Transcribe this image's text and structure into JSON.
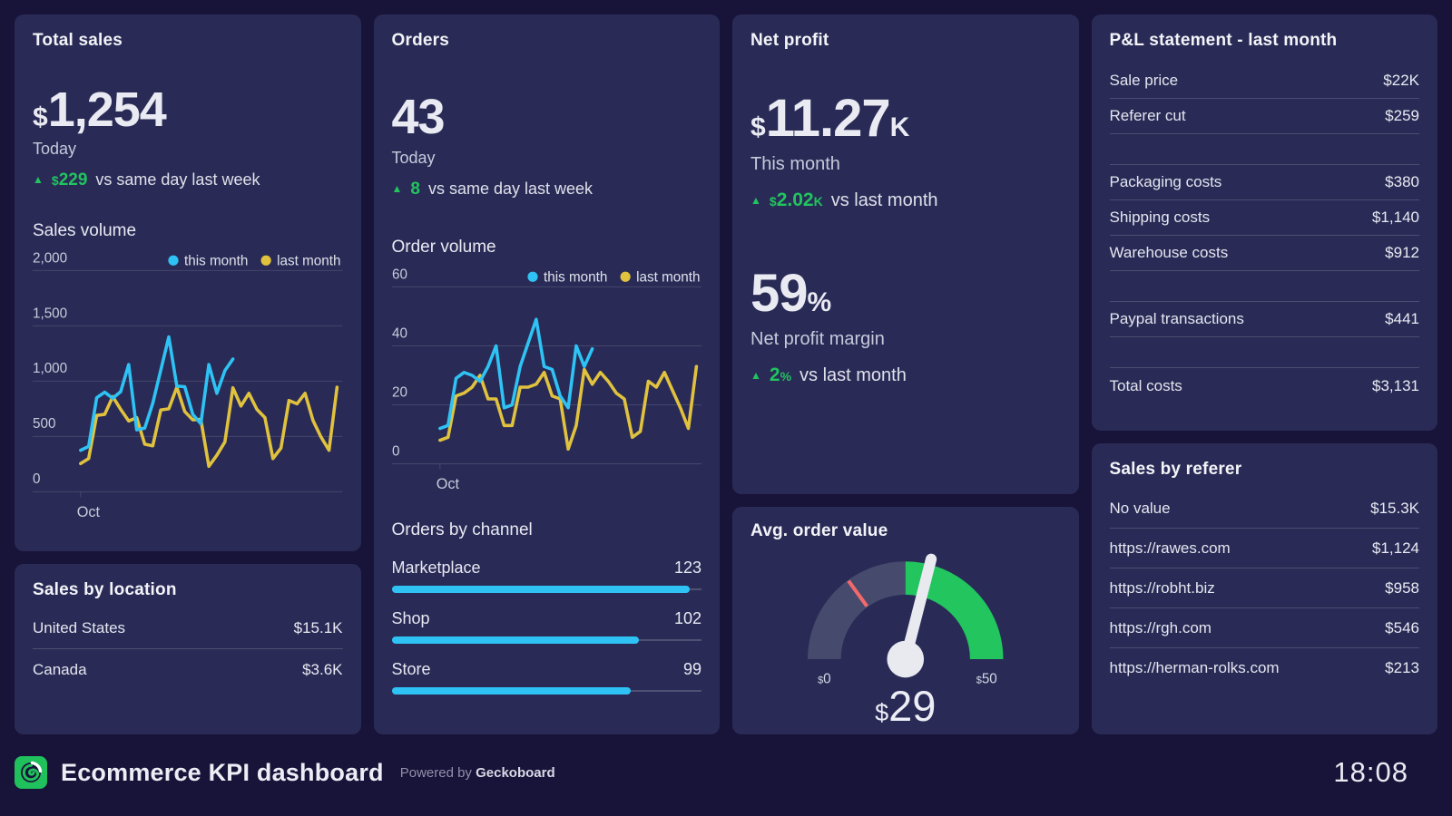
{
  "colors": {
    "background": "#181339",
    "card": "#292b56",
    "green": "#21c45f",
    "cyan": "#2ec3f4",
    "yellow": "#e0c23e",
    "red": "#f2696c",
    "gauge_track": "#464a6d",
    "gauge_green": "#22c55e",
    "needle": "#e9e9f0"
  },
  "cards": {
    "total_sales": {
      "title": "Total sales",
      "big": {
        "currency": "$",
        "amount": "1,254"
      },
      "period": "Today",
      "delta": {
        "direction": "up",
        "currency": "$",
        "amount": "229",
        "text": "vs same day last week"
      },
      "section": "Sales volume"
    },
    "sales_by_location": {
      "title": "Sales by location",
      "rows": [
        {
          "label": "United States",
          "value": "$15.1K"
        },
        {
          "label": "Canada",
          "value": "$3.6K"
        }
      ]
    },
    "orders": {
      "title": "Orders",
      "big": {
        "amount": "43"
      },
      "period": "Today",
      "delta": {
        "direction": "up",
        "amount": "8",
        "text": "vs same day last week"
      },
      "section": "Order volume",
      "channel_title": "Orders by channel"
    },
    "net_profit": {
      "title": "Net profit",
      "big": {
        "currency": "$",
        "amount": "11.27",
        "unit": "K"
      },
      "period": "This month",
      "delta": {
        "direction": "up",
        "currency": "$",
        "amount": "2.02",
        "unit": "K",
        "text": "vs last month"
      },
      "margin": {
        "big": {
          "amount": "59",
          "unit": "%"
        },
        "label": "Net profit margin",
        "delta": {
          "direction": "up",
          "amount": "2",
          "unit": "%",
          "text": "vs last month"
        }
      }
    },
    "avg_order_value": {
      "title": "Avg. order value",
      "value": {
        "currency": "$",
        "amount": "29"
      },
      "min_label": {
        "currency": "$",
        "amount": "0"
      },
      "max_label": {
        "currency": "$",
        "amount": "50"
      }
    },
    "pnl": {
      "title": "P&L statement - last month",
      "rows": [
        {
          "label": "Sale price",
          "value": "$22K"
        },
        {
          "label": "Referer cut",
          "value": "$259"
        },
        {
          "spacer": true
        },
        {
          "label": "Packaging costs",
          "value": "$380"
        },
        {
          "label": "Shipping costs",
          "value": "$1,140"
        },
        {
          "label": "Warehouse costs",
          "value": "$912"
        },
        {
          "spacer": true
        },
        {
          "label": "Paypal transactions",
          "value": "$441"
        },
        {
          "spacer": true
        },
        {
          "label": "Total costs",
          "value": "$3,131"
        }
      ]
    },
    "sales_by_referer": {
      "title": "Sales by referer",
      "rows": [
        {
          "label": "No value",
          "value": "$15.3K"
        },
        {
          "label": "https://rawes.com",
          "value": "$1,124"
        },
        {
          "label": "https://robht.biz",
          "value": "$958"
        },
        {
          "label": "https://rgh.com",
          "value": "$546"
        },
        {
          "label": "https://herman-rolks.com",
          "value": "$213"
        }
      ]
    }
  },
  "footer": {
    "logo": "geckoboard-logo",
    "title": "Ecommerce KPI dashboard",
    "powered_prefix": "Powered by",
    "powered_brand": "Geckoboard",
    "clock": "18:08"
  },
  "chart_data": [
    {
      "type": "line",
      "title": "Sales volume",
      "x_axis_label": "Oct",
      "ylim": [
        0,
        2000
      ],
      "yticks": [
        0,
        500,
        1000,
        1500,
        2000
      ],
      "ytick_labels": [
        "0",
        "500",
        "1,000",
        "1,500",
        "2,000"
      ],
      "legend_position": "top-right",
      "grid": true,
      "legend": [
        {
          "name": "this month",
          "color": "#2ec3f4"
        },
        {
          "name": "last month",
          "color": "#e0c23e"
        }
      ],
      "series": [
        {
          "name": "this month",
          "values": [
            375,
            410,
            850,
            900,
            845,
            905,
            1150,
            560,
            575,
            800,
            1100,
            1400,
            955,
            950,
            700,
            615,
            1150,
            890,
            1095,
            1200
          ]
        },
        {
          "name": "last month",
          "values": [
            255,
            300,
            690,
            700,
            860,
            745,
            640,
            670,
            430,
            415,
            740,
            750,
            945,
            725,
            650,
            655,
            230,
            330,
            450,
            940,
            775,
            890,
            745,
            670,
            300,
            395,
            825,
            795,
            890,
            645,
            495,
            375,
            945
          ]
        }
      ]
    },
    {
      "type": "line",
      "title": "Order volume",
      "x_axis_label": "Oct",
      "ylim": [
        0,
        60
      ],
      "yticks": [
        0,
        20,
        40,
        60
      ],
      "ytick_labels": [
        "0",
        "20",
        "40",
        "60"
      ],
      "legend_position": "top-right",
      "grid": true,
      "legend": [
        {
          "name": "this month",
          "color": "#2ec3f4"
        },
        {
          "name": "last month",
          "color": "#e0c23e"
        }
      ],
      "series": [
        {
          "name": "this month",
          "values": [
            12,
            13,
            29,
            31,
            30,
            28,
            33,
            40,
            19,
            20,
            33,
            41,
            49,
            33,
            32,
            23,
            19,
            40,
            33,
            39
          ]
        },
        {
          "name": "last month",
          "values": [
            8,
            9,
            23,
            24,
            26,
            30,
            22,
            22,
            13,
            13,
            26,
            26,
            27,
            31,
            23,
            22,
            5,
            13,
            32,
            27,
            31,
            28,
            24,
            22,
            9,
            11,
            28,
            26,
            31,
            25,
            19,
            12,
            33
          ]
        }
      ]
    },
    {
      "type": "bar",
      "title": "Orders by channel",
      "categories": [
        "Marketplace",
        "Shop",
        "Store"
      ],
      "values": [
        123,
        102,
        99
      ],
      "xlim": [
        0,
        128
      ]
    },
    {
      "type": "gauge",
      "title": "Avg. order value",
      "value": 29,
      "min": 0,
      "max": 50,
      "green_zone": [
        25,
        50
      ],
      "red_marker": 15,
      "value_label": "$29",
      "min_label": "$0",
      "max_label": "$50"
    }
  ]
}
